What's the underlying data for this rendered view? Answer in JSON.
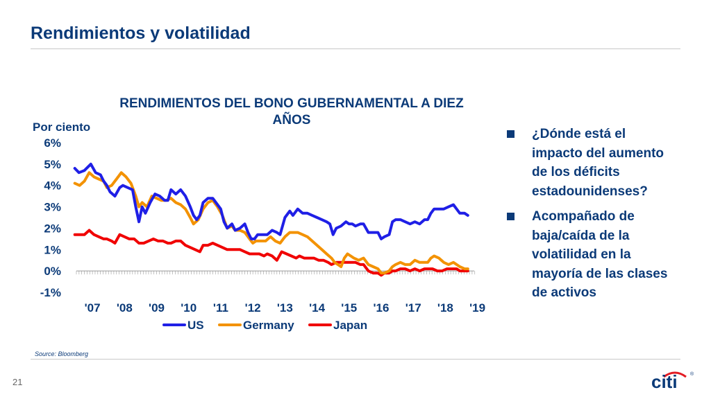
{
  "slide": {
    "title": "Rendimientos y volatilidad",
    "page_number": "21",
    "source": "Source: Bloomberg",
    "logo_text": "citi"
  },
  "bullets": [
    "¿Dónde está el impacto del aumento de los déficits estadounidenses?",
    "Acompañado de baja/caída de la volatilidad en la mayoría de las clases de activos"
  ],
  "colors": {
    "title": "#0b3a78",
    "bullet": "#0b3a78",
    "logo_arc": "#e31b23"
  },
  "chart_data": {
    "type": "line",
    "title": "RENDIMIENTOS DEL BONO GUBERNAMENTAL A DIEZ AÑOS",
    "ylabel": "Por ciento",
    "xlabel": "",
    "ylim": [
      -1,
      6
    ],
    "y_ticks": [
      -1,
      0,
      1,
      2,
      3,
      4,
      5,
      6
    ],
    "y_tick_labels": [
      "-1%",
      "0%",
      "1%",
      "2%",
      "3%",
      "4%",
      "5%",
      "6%"
    ],
    "xlim": [
      2007,
      2019.4
    ],
    "x_ticks": [
      2007,
      2008,
      2009,
      2010,
      2011,
      2012,
      2013,
      2014,
      2015,
      2016,
      2017,
      2018,
      2019
    ],
    "x_tick_labels": [
      "'07",
      "'08",
      "'09",
      "'10",
      "'11",
      "'12",
      "'13",
      "'14",
      "'15",
      "'16",
      "'17",
      "'18",
      "'19"
    ],
    "grid": false,
    "legend_position": "bottom",
    "series": [
      {
        "name": "US",
        "color": "#1f1fe6",
        "points": [
          [
            2006.95,
            4.8
          ],
          [
            2007.08,
            4.6
          ],
          [
            2007.25,
            4.7
          ],
          [
            2007.45,
            5.0
          ],
          [
            2007.6,
            4.6
          ],
          [
            2007.75,
            4.5
          ],
          [
            2007.85,
            4.2
          ],
          [
            2007.95,
            4.0
          ],
          [
            2008.05,
            3.7
          ],
          [
            2008.2,
            3.5
          ],
          [
            2008.35,
            3.9
          ],
          [
            2008.45,
            4.0
          ],
          [
            2008.6,
            3.9
          ],
          [
            2008.75,
            3.8
          ],
          [
            2008.85,
            3.0
          ],
          [
            2008.95,
            2.3
          ],
          [
            2009.05,
            3.0
          ],
          [
            2009.15,
            2.7
          ],
          [
            2009.3,
            3.2
          ],
          [
            2009.45,
            3.6
          ],
          [
            2009.6,
            3.5
          ],
          [
            2009.75,
            3.3
          ],
          [
            2009.85,
            3.3
          ],
          [
            2009.95,
            3.8
          ],
          [
            2010.1,
            3.6
          ],
          [
            2010.25,
            3.8
          ],
          [
            2010.4,
            3.5
          ],
          [
            2010.55,
            3.0
          ],
          [
            2010.65,
            2.6
          ],
          [
            2010.75,
            2.4
          ],
          [
            2010.85,
            2.6
          ],
          [
            2010.95,
            3.2
          ],
          [
            2011.1,
            3.4
          ],
          [
            2011.25,
            3.4
          ],
          [
            2011.4,
            3.1
          ],
          [
            2011.5,
            2.9
          ],
          [
            2011.6,
            2.3
          ],
          [
            2011.7,
            2.0
          ],
          [
            2011.85,
            2.2
          ],
          [
            2011.95,
            1.9
          ],
          [
            2012.1,
            2.0
          ],
          [
            2012.25,
            2.2
          ],
          [
            2012.35,
            1.8
          ],
          [
            2012.45,
            1.5
          ],
          [
            2012.55,
            1.5
          ],
          [
            2012.65,
            1.7
          ],
          [
            2012.8,
            1.7
          ],
          [
            2012.95,
            1.7
          ],
          [
            2013.1,
            1.9
          ],
          [
            2013.25,
            1.8
          ],
          [
            2013.35,
            1.7
          ],
          [
            2013.5,
            2.5
          ],
          [
            2013.65,
            2.8
          ],
          [
            2013.75,
            2.6
          ],
          [
            2013.9,
            2.9
          ],
          [
            2014.05,
            2.7
          ],
          [
            2014.2,
            2.7
          ],
          [
            2014.35,
            2.6
          ],
          [
            2014.5,
            2.5
          ],
          [
            2014.65,
            2.4
          ],
          [
            2014.8,
            2.3
          ],
          [
            2014.9,
            2.2
          ],
          [
            2015.0,
            1.7
          ],
          [
            2015.1,
            2.0
          ],
          [
            2015.25,
            2.1
          ],
          [
            2015.4,
            2.3
          ],
          [
            2015.5,
            2.2
          ],
          [
            2015.6,
            2.2
          ],
          [
            2015.7,
            2.1
          ],
          [
            2015.85,
            2.2
          ],
          [
            2015.95,
            2.2
          ],
          [
            2016.1,
            1.8
          ],
          [
            2016.25,
            1.8
          ],
          [
            2016.4,
            1.8
          ],
          [
            2016.5,
            1.5
          ],
          [
            2016.6,
            1.6
          ],
          [
            2016.75,
            1.7
          ],
          [
            2016.85,
            2.3
          ],
          [
            2016.95,
            2.4
          ],
          [
            2017.1,
            2.4
          ],
          [
            2017.25,
            2.3
          ],
          [
            2017.4,
            2.2
          ],
          [
            2017.55,
            2.3
          ],
          [
            2017.7,
            2.2
          ],
          [
            2017.85,
            2.4
          ],
          [
            2017.95,
            2.4
          ],
          [
            2018.05,
            2.7
          ],
          [
            2018.15,
            2.9
          ],
          [
            2018.3,
            2.9
          ],
          [
            2018.45,
            2.9
          ],
          [
            2018.6,
            3.0
          ],
          [
            2018.75,
            3.1
          ],
          [
            2018.85,
            2.9
          ],
          [
            2018.95,
            2.7
          ],
          [
            2019.1,
            2.7
          ],
          [
            2019.2,
            2.6
          ]
        ]
      },
      {
        "name": "Germany",
        "color": "#f39200",
        "points": [
          [
            2006.95,
            4.1
          ],
          [
            2007.1,
            4.0
          ],
          [
            2007.25,
            4.2
          ],
          [
            2007.4,
            4.6
          ],
          [
            2007.55,
            4.4
          ],
          [
            2007.7,
            4.3
          ],
          [
            2007.85,
            4.2
          ],
          [
            2007.95,
            3.9
          ],
          [
            2008.1,
            4.0
          ],
          [
            2008.25,
            4.3
          ],
          [
            2008.4,
            4.6
          ],
          [
            2008.55,
            4.4
          ],
          [
            2008.7,
            4.1
          ],
          [
            2008.85,
            3.5
          ],
          [
            2008.95,
            3.0
          ],
          [
            2009.05,
            3.2
          ],
          [
            2009.2,
            3.0
          ],
          [
            2009.35,
            3.5
          ],
          [
            2009.5,
            3.4
          ],
          [
            2009.65,
            3.3
          ],
          [
            2009.8,
            3.3
          ],
          [
            2009.95,
            3.4
          ],
          [
            2010.1,
            3.2
          ],
          [
            2010.25,
            3.1
          ],
          [
            2010.4,
            2.9
          ],
          [
            2010.55,
            2.5
          ],
          [
            2010.65,
            2.2
          ],
          [
            2010.8,
            2.4
          ],
          [
            2010.95,
            2.9
          ],
          [
            2011.1,
            3.2
          ],
          [
            2011.25,
            3.3
          ],
          [
            2011.4,
            3.0
          ],
          [
            2011.55,
            2.6
          ],
          [
            2011.7,
            2.0
          ],
          [
            2011.85,
            2.1
          ],
          [
            2011.95,
            1.9
          ],
          [
            2012.1,
            1.9
          ],
          [
            2012.25,
            1.8
          ],
          [
            2012.4,
            1.5
          ],
          [
            2012.5,
            1.3
          ],
          [
            2012.6,
            1.4
          ],
          [
            2012.75,
            1.4
          ],
          [
            2012.9,
            1.4
          ],
          [
            2013.05,
            1.6
          ],
          [
            2013.2,
            1.4
          ],
          [
            2013.35,
            1.3
          ],
          [
            2013.5,
            1.6
          ],
          [
            2013.65,
            1.8
          ],
          [
            2013.75,
            1.8
          ],
          [
            2013.9,
            1.8
          ],
          [
            2014.05,
            1.7
          ],
          [
            2014.2,
            1.6
          ],
          [
            2014.35,
            1.4
          ],
          [
            2014.5,
            1.2
          ],
          [
            2014.65,
            1.0
          ],
          [
            2014.8,
            0.8
          ],
          [
            2014.95,
            0.6
          ],
          [
            2015.05,
            0.4
          ],
          [
            2015.15,
            0.3
          ],
          [
            2015.25,
            0.2
          ],
          [
            2015.35,
            0.6
          ],
          [
            2015.45,
            0.8
          ],
          [
            2015.55,
            0.7
          ],
          [
            2015.65,
            0.6
          ],
          [
            2015.8,
            0.5
          ],
          [
            2015.95,
            0.6
          ],
          [
            2016.1,
            0.3
          ],
          [
            2016.25,
            0.2
          ],
          [
            2016.4,
            0.1
          ],
          [
            2016.5,
            -0.1
          ],
          [
            2016.6,
            -0.1
          ],
          [
            2016.75,
            0.0
          ],
          [
            2016.85,
            0.2
          ],
          [
            2016.95,
            0.3
          ],
          [
            2017.1,
            0.4
          ],
          [
            2017.25,
            0.3
          ],
          [
            2017.4,
            0.3
          ],
          [
            2017.55,
            0.5
          ],
          [
            2017.7,
            0.4
          ],
          [
            2017.85,
            0.4
          ],
          [
            2017.95,
            0.4
          ],
          [
            2018.05,
            0.6
          ],
          [
            2018.15,
            0.7
          ],
          [
            2018.3,
            0.6
          ],
          [
            2018.45,
            0.4
          ],
          [
            2018.6,
            0.3
          ],
          [
            2018.75,
            0.4
          ],
          [
            2018.85,
            0.3
          ],
          [
            2018.95,
            0.2
          ],
          [
            2019.1,
            0.1
          ],
          [
            2019.2,
            0.1
          ]
        ]
      },
      {
        "name": "Japan",
        "color": "#f00000",
        "points": [
          [
            2006.95,
            1.7
          ],
          [
            2007.1,
            1.7
          ],
          [
            2007.25,
            1.7
          ],
          [
            2007.4,
            1.9
          ],
          [
            2007.55,
            1.7
          ],
          [
            2007.7,
            1.6
          ],
          [
            2007.85,
            1.5
          ],
          [
            2007.95,
            1.5
          ],
          [
            2008.1,
            1.4
          ],
          [
            2008.2,
            1.3
          ],
          [
            2008.35,
            1.7
          ],
          [
            2008.5,
            1.6
          ],
          [
            2008.65,
            1.5
          ],
          [
            2008.8,
            1.5
          ],
          [
            2008.95,
            1.3
          ],
          [
            2009.1,
            1.3
          ],
          [
            2009.25,
            1.4
          ],
          [
            2009.4,
            1.5
          ],
          [
            2009.55,
            1.4
          ],
          [
            2009.7,
            1.4
          ],
          [
            2009.85,
            1.3
          ],
          [
            2009.95,
            1.3
          ],
          [
            2010.1,
            1.4
          ],
          [
            2010.25,
            1.4
          ],
          [
            2010.4,
            1.2
          ],
          [
            2010.55,
            1.1
          ],
          [
            2010.7,
            1.0
          ],
          [
            2010.85,
            0.9
          ],
          [
            2010.95,
            1.2
          ],
          [
            2011.1,
            1.2
          ],
          [
            2011.25,
            1.3
          ],
          [
            2011.4,
            1.2
          ],
          [
            2011.55,
            1.1
          ],
          [
            2011.7,
            1.0
          ],
          [
            2011.85,
            1.0
          ],
          [
            2011.95,
            1.0
          ],
          [
            2012.1,
            1.0
          ],
          [
            2012.25,
            0.9
          ],
          [
            2012.4,
            0.8
          ],
          [
            2012.55,
            0.8
          ],
          [
            2012.7,
            0.8
          ],
          [
            2012.85,
            0.7
          ],
          [
            2012.95,
            0.8
          ],
          [
            2013.1,
            0.7
          ],
          [
            2013.25,
            0.5
          ],
          [
            2013.4,
            0.9
          ],
          [
            2013.55,
            0.8
          ],
          [
            2013.7,
            0.7
          ],
          [
            2013.85,
            0.6
          ],
          [
            2013.95,
            0.7
          ],
          [
            2014.1,
            0.6
          ],
          [
            2014.25,
            0.6
          ],
          [
            2014.4,
            0.6
          ],
          [
            2014.55,
            0.5
          ],
          [
            2014.7,
            0.5
          ],
          [
            2014.85,
            0.4
          ],
          [
            2014.95,
            0.3
          ],
          [
            2015.1,
            0.4
          ],
          [
            2015.25,
            0.4
          ],
          [
            2015.4,
            0.4
          ],
          [
            2015.55,
            0.4
          ],
          [
            2015.7,
            0.4
          ],
          [
            2015.85,
            0.3
          ],
          [
            2015.95,
            0.3
          ],
          [
            2016.1,
            0.0
          ],
          [
            2016.25,
            -0.1
          ],
          [
            2016.4,
            -0.1
          ],
          [
            2016.5,
            -0.2
          ],
          [
            2016.6,
            -0.1
          ],
          [
            2016.75,
            -0.1
          ],
          [
            2016.85,
            0.0
          ],
          [
            2016.95,
            0.0
          ],
          [
            2017.1,
            0.1
          ],
          [
            2017.25,
            0.1
          ],
          [
            2017.4,
            0.0
          ],
          [
            2017.55,
            0.1
          ],
          [
            2017.7,
            0.0
          ],
          [
            2017.85,
            0.1
          ],
          [
            2017.95,
            0.1
          ],
          [
            2018.1,
            0.1
          ],
          [
            2018.25,
            0.0
          ],
          [
            2018.4,
            0.0
          ],
          [
            2018.55,
            0.1
          ],
          [
            2018.7,
            0.1
          ],
          [
            2018.85,
            0.1
          ],
          [
            2018.95,
            0.0
          ],
          [
            2019.1,
            0.0
          ],
          [
            2019.2,
            0.0
          ]
        ]
      }
    ]
  }
}
